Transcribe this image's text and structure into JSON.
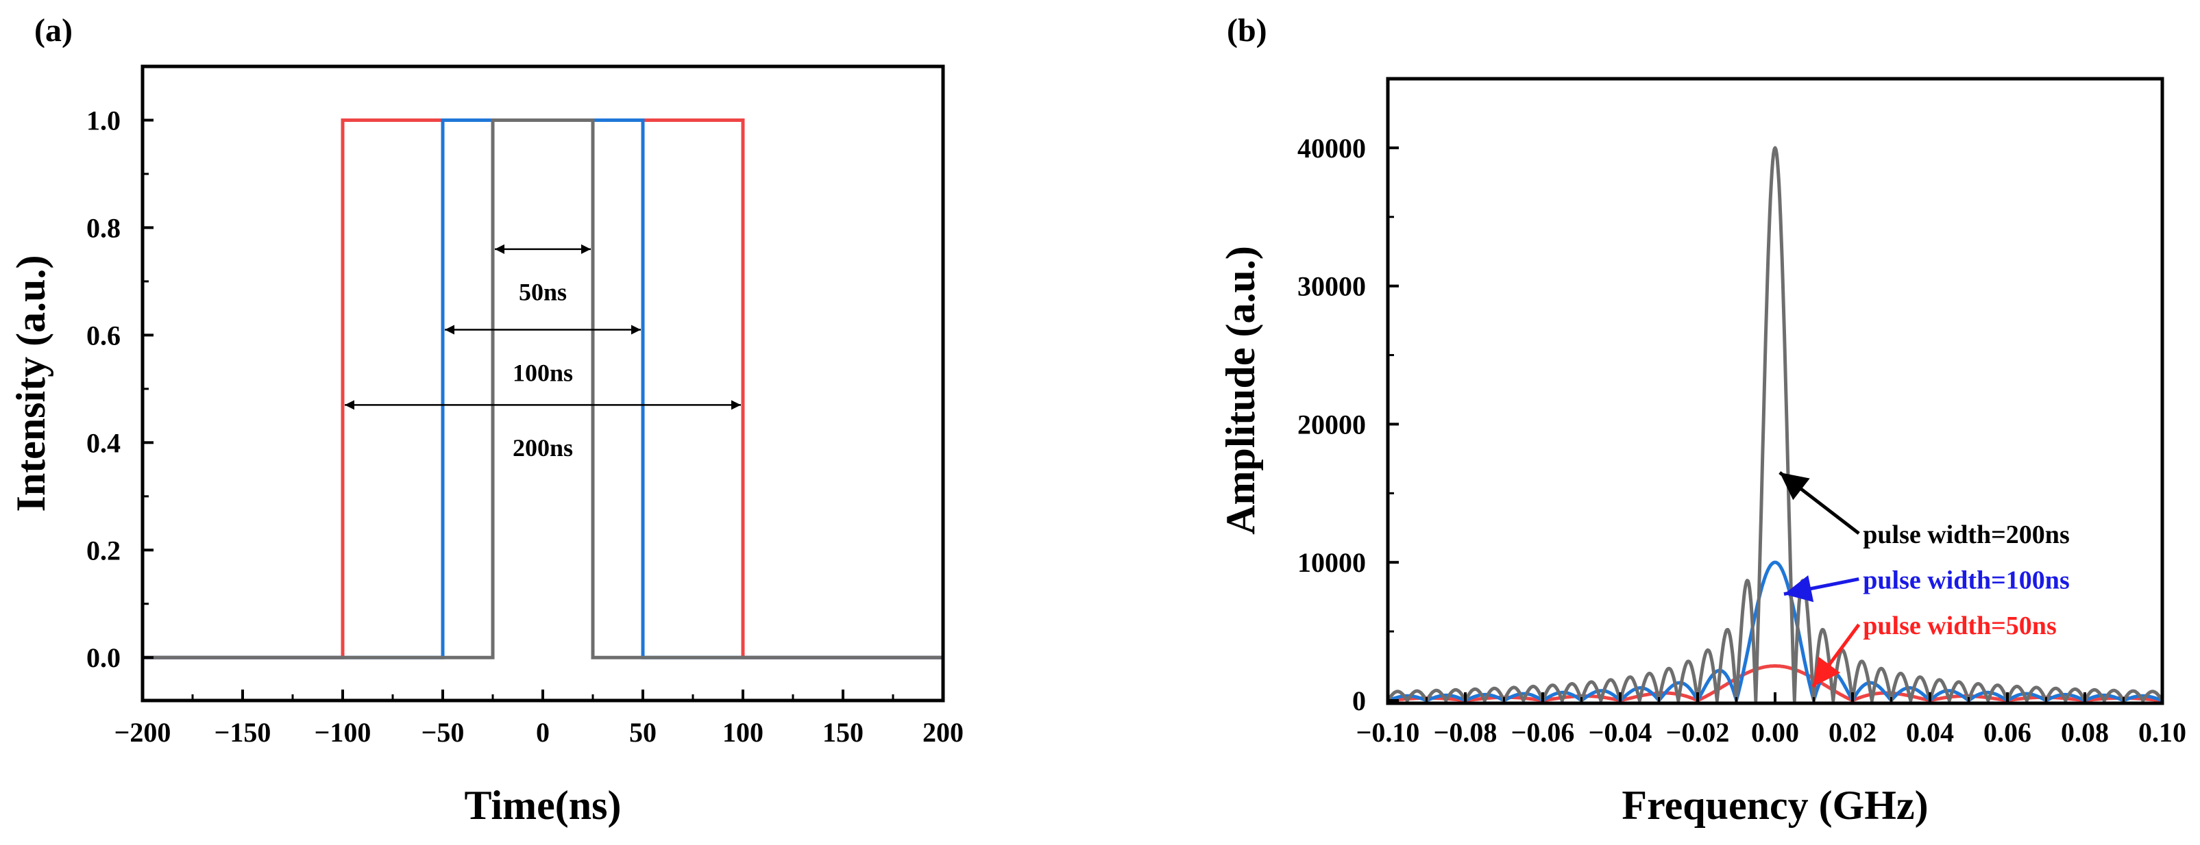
{
  "colors": {
    "gray": "#6e6e6e",
    "blue": "#1f77d8",
    "red": "#ef4444",
    "black": "#000000",
    "blue_text": "#1a1ae6",
    "red_text": "#ff2020"
  },
  "chart_data": [
    {
      "type": "line",
      "panel_label": "(a)",
      "xlabel": "Time(ns)",
      "ylabel": "Intensity (a.u.)",
      "xlim": [
        -200,
        200
      ],
      "ylim": [
        -0.08,
        1.1
      ],
      "xticks": [
        -200,
        -150,
        -100,
        -50,
        0,
        50,
        100,
        150,
        200
      ],
      "xtick_labels": [
        "−200",
        "−150",
        "−100",
        "−50",
        "0",
        "50",
        "100",
        "150",
        "200"
      ],
      "yticks": [
        0.0,
        0.2,
        0.4,
        0.6,
        0.8,
        1.0
      ],
      "ytick_labels": [
        "0.0",
        "0.2",
        "0.4",
        "0.6",
        "0.8",
        "1.0"
      ],
      "grid": false,
      "series": [
        {
          "color": "#ef4444",
          "x": [
            -200,
            -100,
            -100,
            100,
            100,
            200
          ],
          "y": [
            0,
            0,
            1,
            1,
            0,
            0
          ]
        },
        {
          "color": "#1f77d8",
          "x": [
            -200,
            -50,
            -50,
            50,
            50,
            200
          ],
          "y": [
            0,
            0,
            1,
            1,
            0,
            0
          ]
        },
        {
          "color": "#6e6e6e",
          "x": [
            -200,
            -25,
            -25,
            25,
            25,
            200
          ],
          "y": [
            0,
            0,
            1,
            1,
            0,
            0
          ]
        }
      ],
      "annotations": [
        {
          "text": "50ns",
          "x1": -25,
          "x2": 25,
          "y": 0.76,
          "label_y": 0.68
        },
        {
          "text": "100ns",
          "x1": -50,
          "x2": 50,
          "y": 0.61,
          "label_y": 0.53
        },
        {
          "text": "200ns",
          "x1": -100,
          "x2": 100,
          "y": 0.47,
          "label_y": 0.39
        }
      ]
    },
    {
      "type": "line",
      "panel_label": "(b)",
      "xlabel": "Frequency (GHz)",
      "ylabel": "Amplitude (a.u.)",
      "xlim": [
        -0.1,
        0.1
      ],
      "ylim": [
        -200,
        45000
      ],
      "xticks": [
        -0.1,
        -0.08,
        -0.06,
        -0.04,
        -0.02,
        0.0,
        0.02,
        0.04,
        0.06,
        0.08,
        0.1
      ],
      "xtick_labels": [
        "−0.10",
        "−0.08",
        "−0.06",
        "−0.04",
        "−0.02",
        "0.00",
        "0.02",
        "0.04",
        "0.06",
        "0.08",
        "0.10"
      ],
      "yticks": [
        0,
        10000,
        20000,
        30000,
        40000
      ],
      "ytick_labels": [
        "0",
        "10000",
        "20000",
        "30000",
        "40000"
      ],
      "grid": false,
      "series": [
        {
          "name": "pulse width=200ns",
          "color": "#6e6e6e",
          "label_color": "#000000",
          "peak": 40000,
          "width_ns": 200
        },
        {
          "name": "pulse width=100ns",
          "color": "#1f77d8",
          "label_color": "#1a1ae6",
          "peak": 10000,
          "width_ns": 100
        },
        {
          "name": "pulse width=50ns",
          "color": "#ef4444",
          "label_color": "#ff2020",
          "peak": 2500,
          "width_ns": 50
        }
      ],
      "legend_entries": [
        {
          "text": "pulse width=200ns",
          "label_x": 0.0227,
          "label_y": 11500,
          "arrow_to_x": 0.0012,
          "arrow_to_y": 16500
        },
        {
          "text": "pulse width=100ns",
          "label_x": 0.0227,
          "label_y": 8200,
          "arrow_to_x": 0.0023,
          "arrow_to_y": 7700
        },
        {
          "text": "pulse width=50ns",
          "label_x": 0.0227,
          "label_y": 4900,
          "arrow_to_x": 0.0098,
          "arrow_to_y": 1000
        }
      ]
    }
  ]
}
